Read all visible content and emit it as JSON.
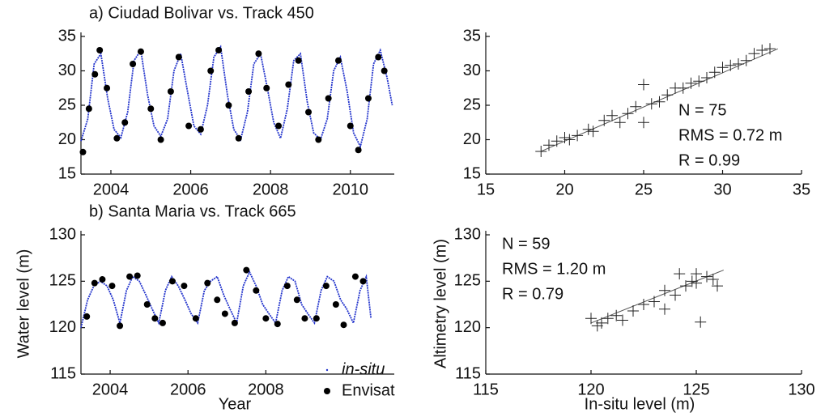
{
  "chart_data": [
    {
      "type": "line",
      "title": "a) Ciudad Bolivar vs. Track 450",
      "xlim": [
        2003.25,
        2011.1
      ],
      "xticks": [
        2004,
        2006,
        2008,
        2010
      ],
      "ylim": [
        15,
        35
      ],
      "yticks": [
        15,
        20,
        25,
        30,
        35
      ],
      "series": [
        {
          "color": "#2233cc",
          "style": "line",
          "x": [
            2003.25,
            2003.42,
            2003.58,
            2003.75,
            2003.92,
            2004.08,
            2004.25,
            2004.42,
            2004.58,
            2004.75,
            2004.92,
            2005.08,
            2005.25,
            2005.42,
            2005.58,
            2005.75,
            2005.92,
            2006.08,
            2006.25,
            2006.42,
            2006.58,
            2006.75,
            2006.92,
            2007.08,
            2007.25,
            2007.42,
            2007.58,
            2007.75,
            2007.92,
            2008.08,
            2008.25,
            2008.42,
            2008.58,
            2008.75,
            2008.92,
            2009.08,
            2009.25,
            2009.42,
            2009.58,
            2009.75,
            2009.92,
            2010.08,
            2010.25,
            2010.42,
            2010.58,
            2010.75,
            2010.92,
            2011.05
          ],
          "values": [
            19.8,
            23,
            31,
            32.5,
            26,
            21.5,
            20.3,
            24,
            31.5,
            33,
            26.5,
            22,
            20.5,
            23,
            30,
            32.5,
            27,
            22,
            20.8,
            25,
            32,
            33.5,
            26.5,
            21.5,
            20,
            24,
            31,
            32.5,
            27.5,
            22.5,
            20.2,
            24.5,
            31.5,
            32.5,
            25.5,
            21,
            20,
            23,
            30,
            32,
            27,
            21,
            19,
            23,
            31,
            33,
            29,
            25
          ]
        },
        {
          "color": "#000000",
          "style": "dots",
          "x": [
            2003.3,
            2003.45,
            2003.6,
            2003.72,
            2003.9,
            2004.15,
            2004.35,
            2004.55,
            2004.75,
            2005.0,
            2005.25,
            2005.5,
            2005.7,
            2005.95,
            2006.25,
            2006.5,
            2006.7,
            2006.95,
            2007.2,
            2007.45,
            2007.7,
            2007.9,
            2008.2,
            2008.45,
            2008.7,
            2008.95,
            2009.2,
            2009.45,
            2009.7,
            2010.0,
            2010.2,
            2010.45,
            2010.7,
            2010.85
          ],
          "values": [
            18.2,
            24.5,
            29.5,
            33,
            27.5,
            20.2,
            22.5,
            31,
            32.8,
            24.5,
            20,
            27,
            32,
            22,
            21.5,
            30,
            33,
            25,
            20.2,
            27,
            32.5,
            27.5,
            22,
            28,
            31.5,
            24,
            20,
            26,
            31.5,
            22,
            18.5,
            26,
            32,
            30
          ]
        }
      ]
    },
    {
      "type": "scatter",
      "xlim": [
        15,
        35
      ],
      "xticks": [
        15,
        20,
        25,
        30,
        35
      ],
      "ylim": [
        15,
        35
      ],
      "yticks": [
        15,
        20,
        25,
        30,
        35
      ],
      "annotations": [
        "N = 75",
        "RMS = 0.72 m",
        "R = 0.99"
      ],
      "color": "#222222",
      "x": [
        18.5,
        19,
        19.5,
        20,
        20.3,
        20.8,
        21.5,
        21.8,
        22.5,
        23,
        23.5,
        24,
        24.5,
        25,
        25,
        25.5,
        26,
        26.5,
        27,
        27.5,
        28,
        28.5,
        29,
        29.5,
        30,
        30.5,
        31,
        31.5,
        32,
        32.5,
        33
      ],
      "values": [
        18.3,
        19.2,
        19.8,
        20.3,
        20,
        20.6,
        21.5,
        21.2,
        22.8,
        23.5,
        22.5,
        23.8,
        24.8,
        28,
        22.5,
        25.2,
        25.5,
        26.5,
        27.5,
        27.5,
        28.2,
        28.5,
        29,
        29.8,
        30.5,
        30.8,
        31,
        31.5,
        32.5,
        33,
        33.2
      ],
      "fit": {
        "x": [
          18.5,
          33.5
        ],
        "values": [
          18.3,
          33.2
        ]
      }
    },
    {
      "type": "line",
      "title": "b) Santa Maria vs. Track 665",
      "xlabel": "Year",
      "ylabel": "Water level (m)",
      "xlim": [
        2003.25,
        2011.3
      ],
      "xticks": [
        2004,
        2006,
        2008
      ],
      "ylim": [
        115,
        130
      ],
      "yticks": [
        115,
        120,
        125,
        130
      ],
      "legend": "lower right",
      "series": [
        {
          "name": "in-situ",
          "color": "#2233cc",
          "style": "line",
          "x": [
            2003.25,
            2003.42,
            2003.58,
            2003.75,
            2003.92,
            2004.08,
            2004.25,
            2004.42,
            2004.58,
            2004.75,
            2004.92,
            2005.08,
            2005.25,
            2005.42,
            2005.58,
            2005.75,
            2005.92,
            2006.08,
            2006.25,
            2006.42,
            2006.58,
            2006.75,
            2006.92,
            2007.08,
            2007.25,
            2007.42,
            2007.58,
            2007.75,
            2007.92,
            2008.08,
            2008.25,
            2008.42,
            2008.58,
            2008.75,
            2008.92,
            2009.08,
            2009.25,
            2009.42,
            2009.58,
            2009.75,
            2009.92,
            2010.08,
            2010.25,
            2010.42,
            2010.58,
            2010.7
          ],
          "values": [
            120,
            123,
            124.5,
            125,
            124.5,
            123,
            120.5,
            124,
            125.5,
            125,
            123.5,
            122,
            120.5,
            124,
            125.5,
            124.5,
            123,
            121.5,
            120.5,
            124,
            125,
            125.5,
            123.5,
            122,
            120.5,
            124.5,
            126,
            124.5,
            122.5,
            121.5,
            120.5,
            124,
            125.5,
            125,
            122.5,
            121.5,
            120.5,
            124,
            125.5,
            125,
            123,
            122,
            120.5,
            124,
            125.5,
            121
          ]
        },
        {
          "name": "Envisat",
          "color": "#000000",
          "style": "dots",
          "x": [
            2003.4,
            2003.6,
            2003.8,
            2004.05,
            2004.25,
            2004.5,
            2004.7,
            2004.95,
            2005.15,
            2005.35,
            2005.6,
            2005.9,
            2006.2,
            2006.5,
            2006.75,
            2006.95,
            2007.2,
            2007.5,
            2007.75,
            2008.0,
            2008.3,
            2008.55,
            2008.8,
            2009.0,
            2009.3,
            2009.55,
            2009.8,
            2010.0,
            2010.3,
            2010.5
          ],
          "values": [
            121.2,
            124.8,
            125.2,
            124.5,
            120.2,
            125.5,
            125.6,
            122.5,
            121,
            120.5,
            125,
            124.5,
            121,
            124.8,
            123,
            121.5,
            120.5,
            126.2,
            124,
            121,
            120.4,
            124.5,
            123,
            121,
            121,
            124.5,
            122.5,
            120.3,
            125.5,
            125
          ]
        }
      ]
    },
    {
      "type": "scatter",
      "xlabel": "In-situ level (m)",
      "ylabel": "Altimetry level (m)",
      "xlim": [
        115,
        130
      ],
      "xticks": [
        115,
        120,
        125,
        130
      ],
      "ylim": [
        115,
        130
      ],
      "yticks": [
        115,
        120,
        125,
        130
      ],
      "annotations": [
        "N = 59",
        "RMS = 1.20 m",
        "R = 0.79"
      ],
      "color": "#222222",
      "x": [
        120,
        120.3,
        120.5,
        120.8,
        121.2,
        121.5,
        122,
        122.5,
        123,
        123.5,
        123.5,
        124,
        124.2,
        124.5,
        124.8,
        125,
        125.2,
        125.5,
        125.8,
        126,
        125
      ],
      "values": [
        121,
        120.2,
        120.5,
        121,
        121.3,
        120.8,
        121.8,
        122.5,
        122.8,
        124,
        122,
        123.5,
        125.8,
        124.5,
        125,
        124.8,
        120.6,
        125.5,
        125.2,
        124.5,
        125.8
      ],
      "fit": {
        "x": [
          120,
          126.3
        ],
        "values": [
          120.5,
          126.2
        ]
      }
    }
  ]
}
